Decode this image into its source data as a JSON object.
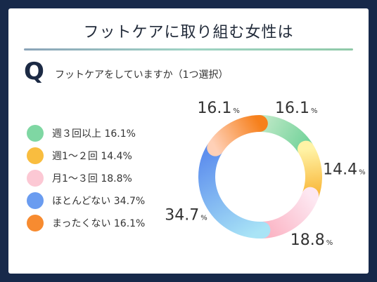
{
  "title": "フットケアに取り組む女性は",
  "question": {
    "mark": "Q",
    "text": "フットケアをしていますか（1つ選択）"
  },
  "percent_sign": "%",
  "chart_data": {
    "type": "pie",
    "style": "donut",
    "categories": [
      "週３回以上",
      "週1〜２回",
      "月1〜３回",
      "ほとんどない",
      "まったくない"
    ],
    "values": [
      16.1,
      14.4,
      18.8,
      34.7,
      16.1
    ],
    "unit": "%",
    "legend_position": "left",
    "colors": [
      [
        "#bde8c6",
        "#74d39b"
      ],
      [
        "#fff3a6",
        "#f9b83b"
      ],
      [
        "#fde7f1",
        "#fbb3c3"
      ],
      [
        "#a9e4f6",
        "#5e8fee"
      ],
      [
        "#ffd0b7",
        "#f6801c"
      ]
    ]
  },
  "legend": [
    {
      "label": "週３回以上 16.1%",
      "color": "#7fd7a3"
    },
    {
      "label": "週1〜２回 14.4%",
      "color": "#f9bd3f"
    },
    {
      "label": "月1〜３回 18.8%",
      "color": "#fcc8d4"
    },
    {
      "label": "ほとんどない 34.7%",
      "color": "#6a9cf0"
    },
    {
      "label": "まったくない 16.1%",
      "color": "#f78b30"
    }
  ]
}
